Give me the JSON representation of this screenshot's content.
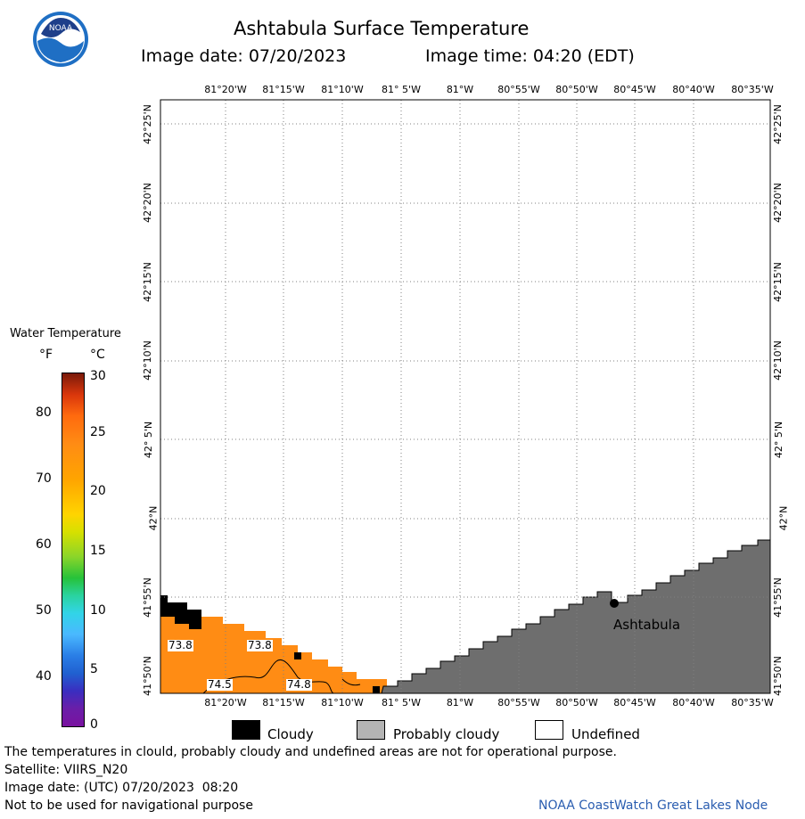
{
  "header": {
    "title": "Ashtabula Surface Temperature",
    "image_date": "Image date: 07/20/2023",
    "image_time": "Image time: 04:20 (EDT)"
  },
  "logo": {
    "text": "NOAA"
  },
  "map": {
    "lon_labels": [
      "81°20'W",
      "81°15'W",
      "81°10'W",
      "81° 5'W",
      "81°W",
      "80°55'W",
      "80°50'W",
      "80°45'W",
      "80°40'W",
      "80°35'W"
    ],
    "lat_labels": [
      "42°25'N",
      "42°20'N",
      "42°15'N",
      "42°10'N",
      "42° 5'N",
      "42°N",
      "41°55'N",
      "41°50'N"
    ],
    "city": "Ashtabula",
    "temp_labels": [
      "73.8",
      "73.8",
      "74.5",
      "74.8"
    ],
    "colors": {
      "water": "#ff8c14",
      "land": "#6e6e6e",
      "cloud": "#000000",
      "grid": "#808080"
    }
  },
  "legend": {
    "title": "Water Temperature",
    "unit_f": "°F",
    "unit_c": "°C",
    "f_ticks": [
      "80",
      "70",
      "60",
      "50",
      "40"
    ],
    "c_ticks": [
      "30",
      "25",
      "20",
      "15",
      "10",
      "5",
      "0"
    ]
  },
  "key": {
    "cloudy": "Cloudy",
    "probably_cloudy": "Probably cloudy",
    "undefined": "Undefined",
    "colors": {
      "cloudy": "#000000",
      "probably_cloudy": "#b4b4b4",
      "undefined": "#ffffff"
    }
  },
  "footer": {
    "disclaimer": "The temperatures in clould, probably cloudy and undefined areas are not for operational purpose.",
    "satellite": "Satellite: VIIRS_N20",
    "utc_date": "Image date: (UTC) 07/20/2023  08:20",
    "nav_warning": "Not to be used for navigational purpose",
    "credit": "NOAA CoastWatch Great Lakes Node"
  }
}
